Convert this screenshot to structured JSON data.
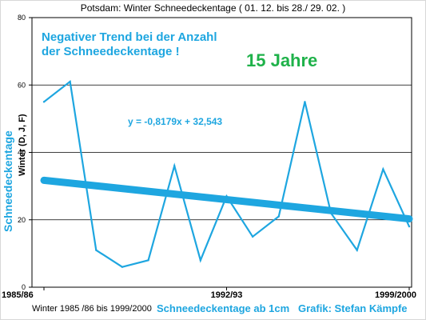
{
  "title": "Potsdam: Winter Schneedeckentage ( 01. 12. bis 28./ 29. 02. )",
  "footer": {
    "left": "Winter 1985 /86 bis 1999/2000",
    "center": "Schneedeckentage  ab 1cm",
    "right": "Grafik: Stefan Kämpfe"
  },
  "annotations": {
    "headline_line1": "Negativer Trend bei der Anzahl",
    "headline_line2": " der Schneedeckentage !",
    "years": "15 Jahre",
    "equation": "y = -0,8179x + 32,543"
  },
  "colors": {
    "series": "#1ea6e0",
    "trend": "#1ea6e0",
    "headline": "#1ea6e0",
    "years": "#1fb24a",
    "grid": "#000000"
  },
  "chart_data": {
    "type": "line",
    "ylabel_primary": "Schneedeckentage",
    "ylabel_secondary": "Winter (D, J, F)",
    "x_tick_labels": [
      "1985/86",
      "1992/93",
      "1999/2000"
    ],
    "x_tick_indices": [
      0,
      7,
      14
    ],
    "ylim": [
      0,
      80
    ],
    "yticks": [
      0,
      20,
      40,
      60,
      80
    ],
    "grid": true,
    "series": [
      {
        "type": "line",
        "x": [
          "1985/86",
          "1986/87",
          "1987/88",
          "1988/89",
          "1989/90",
          "1990/91",
          "1991/92",
          "1992/93",
          "1993/94",
          "1994/95",
          "1995/96",
          "1996/97",
          "1997/98",
          "1998/99",
          "1999/2000"
        ],
        "values": [
          55,
          61,
          11,
          6,
          8,
          36,
          8,
          27,
          15,
          21,
          55,
          22,
          11,
          35,
          18
        ]
      },
      {
        "type": "trendline",
        "slope": -0.8179,
        "intercept": 32.543
      }
    ]
  }
}
